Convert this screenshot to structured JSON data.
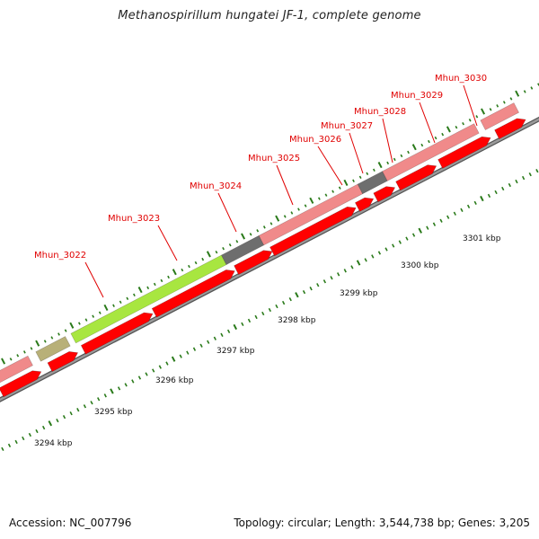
{
  "title": "Methanospirillum hungatei JF-1, complete genome",
  "footer": {
    "accession": "Accession: NC_007796",
    "stats": "Topology: circular; Length: 3,544,738 bp; Genes: 3,205"
  },
  "scale_labels": [
    "3294 kbp",
    "3295 kbp",
    "3296 kbp",
    "3297 kbp",
    "3298 kbp",
    "3299 kbp",
    "3300 kbp",
    "3301 kbp"
  ],
  "gene_labels": [
    "Mhun_3022",
    "Mhun_3023",
    "Mhun_3024",
    "Mhun_3025",
    "Mhun_3026",
    "Mhun_3027",
    "Mhun_3028",
    "Mhun_3029",
    "Mhun_3030"
  ],
  "colors": {
    "cds": "#ff0000",
    "gene_feature": "#f08a8a",
    "rrna": "#a8e640",
    "trna": "#6e6e6e",
    "misc": "#b8b078",
    "backbone": "#777777",
    "tick": "#2a7a1a",
    "blue_feature": "#1010e0",
    "olive_feature": "#6a8a20",
    "label": "#e00000"
  }
}
